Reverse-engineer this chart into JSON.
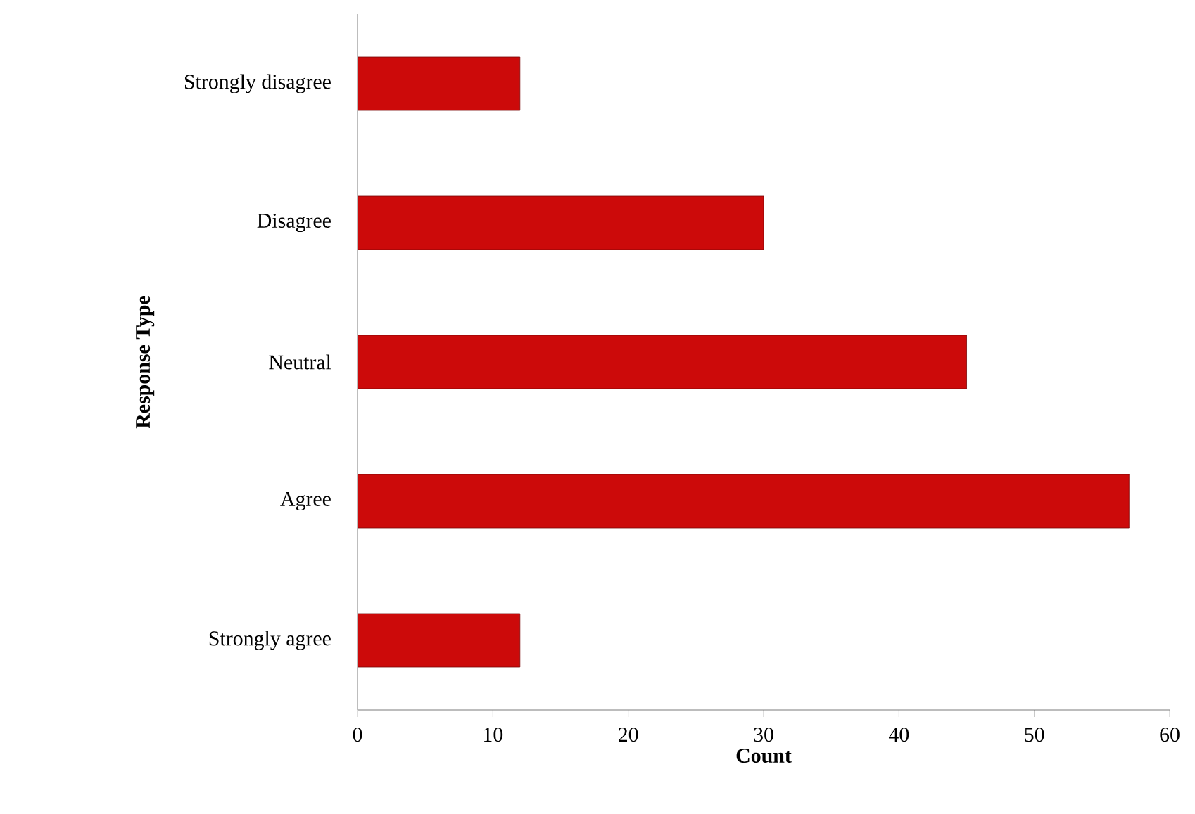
{
  "chart_data": {
    "type": "bar",
    "orientation": "horizontal",
    "categories": [
      "Strongly disagree",
      "Disagree",
      "Neutral",
      "Agree",
      "Strongly agree"
    ],
    "values": [
      12,
      30,
      45,
      57,
      12
    ],
    "color": "#cc0a0a",
    "xlim": [
      0,
      60
    ],
    "xticks": [
      0,
      10,
      20,
      30,
      40,
      50,
      60
    ],
    "xlabel": "Count",
    "ylabel": "Response Type"
  }
}
